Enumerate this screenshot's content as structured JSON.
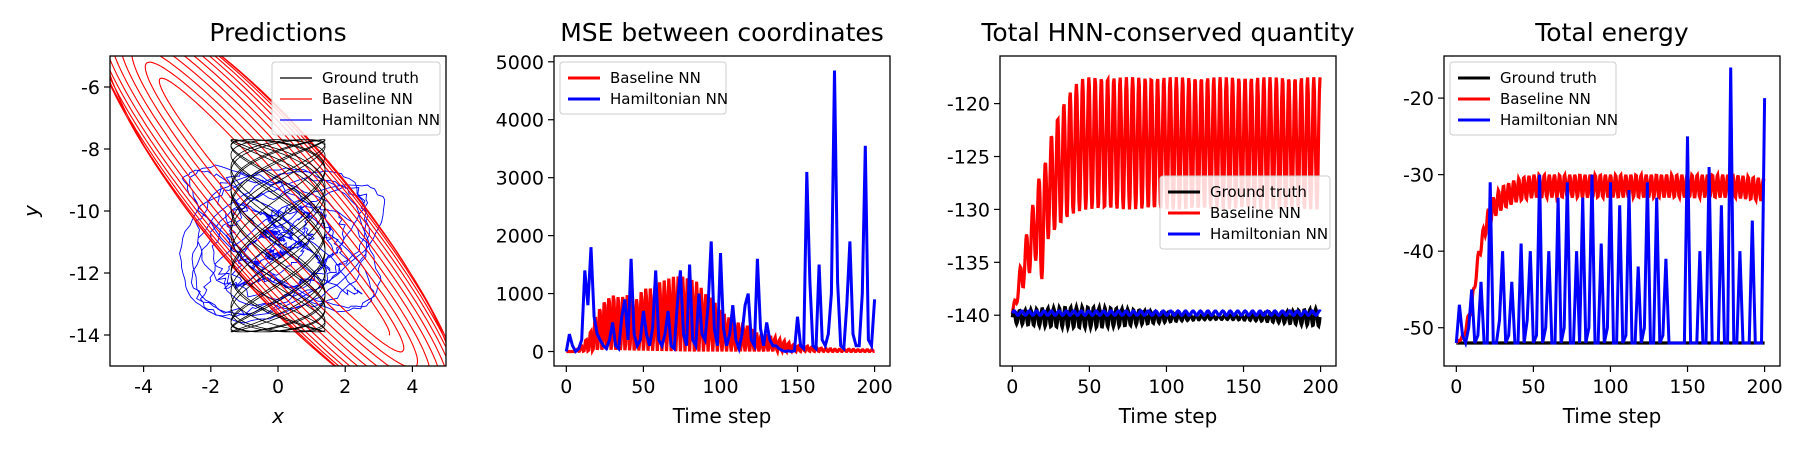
{
  "chart_data": [
    {
      "type": "line",
      "title": "Predictions",
      "xlabel": "x",
      "ylabel": "y",
      "xlim": [
        -5,
        5
      ],
      "ylim": [
        -15,
        -5
      ],
      "xticks": [
        -4,
        -2,
        0,
        2,
        4
      ],
      "yticks": [
        -6,
        -8,
        -10,
        -12,
        -14
      ],
      "legend": "top-right",
      "series": [
        {
          "name": "Ground truth",
          "color": "#000000",
          "shape": "lissajous",
          "x_range": [
            -1.4,
            1.4
          ],
          "y_range": [
            -13.9,
            -7.7
          ]
        },
        {
          "name": "Baseline NN",
          "color": "#ff0000",
          "shape": "drifting elongated ellipses",
          "center": [
            0,
            -10
          ],
          "tilt_deg": -38,
          "x_extent": [
            -4.5,
            4.5
          ],
          "y_extent": [
            -15,
            -5
          ]
        },
        {
          "name": "Hamiltonian NN",
          "color": "#0000ff",
          "shape": "chaotic loops",
          "center": [
            0,
            -11
          ],
          "x_extent": [
            -4,
            4
          ],
          "y_extent": [
            -14.3,
            -7.8
          ]
        }
      ]
    },
    {
      "type": "line",
      "title": "MSE between coordinates",
      "xlabel": "Time step",
      "ylabel": "",
      "xlim": [
        -8,
        210
      ],
      "ylim": [
        -250,
        5100
      ],
      "xticks": [
        0,
        50,
        100,
        150,
        200
      ],
      "yticks": [
        0,
        1000,
        2000,
        3000,
        4000,
        5000
      ],
      "legend": "top-left",
      "series": [
        {
          "name": "Baseline NN",
          "color": "#ff0000",
          "x": [
            0,
            5,
            10,
            15,
            20,
            25,
            30,
            35,
            40,
            45,
            50,
            55,
            60,
            65,
            70,
            75,
            80,
            85,
            90,
            95,
            100,
            105,
            110,
            115,
            120,
            125,
            130,
            135,
            140,
            145,
            150,
            155,
            160,
            165,
            170,
            175,
            180,
            185,
            190,
            195,
            200
          ],
          "values": [
            0,
            0,
            100,
            300,
            700,
            900,
            1000,
            950,
            1000,
            900,
            1100,
            1100,
            1200,
            1250,
            1300,
            1300,
            1250,
            1200,
            1000,
            900,
            700,
            600,
            500,
            500,
            400,
            300,
            300,
            250,
            200,
            150,
            100,
            100,
            80,
            60,
            50,
            40,
            40,
            40,
            30,
            30,
            30
          ]
        },
        {
          "name": "Hamiltonian NN",
          "x": [
            0,
            2,
            4,
            6,
            8,
            10,
            12,
            14,
            16,
            18,
            20,
            22,
            24,
            26,
            28,
            30,
            32,
            34,
            36,
            38,
            40,
            42,
            44,
            46,
            48,
            50,
            52,
            54,
            56,
            58,
            60,
            62,
            64,
            66,
            68,
            70,
            72,
            74,
            76,
            78,
            80,
            82,
            84,
            86,
            88,
            90,
            92,
            94,
            96,
            98,
            100,
            102,
            104,
            106,
            108,
            110,
            112,
            114,
            116,
            118,
            120,
            122,
            124,
            126,
            128,
            130,
            132,
            134,
            136,
            138,
            140,
            142,
            144,
            146,
            148,
            150,
            152,
            154,
            156,
            158,
            160,
            162,
            164,
            166,
            168,
            170,
            172,
            174,
            176,
            178,
            180,
            182,
            184,
            186,
            188,
            190,
            192,
            194,
            196,
            198,
            200
          ],
          "values": [
            0,
            300,
            100,
            0,
            50,
            200,
            1400,
            800,
            1800,
            600,
            300,
            200,
            100,
            50,
            200,
            500,
            100,
            50,
            600,
            900,
            200,
            1600,
            300,
            100,
            200,
            700,
            300,
            100,
            400,
            1400,
            200,
            100,
            300,
            700,
            100,
            50,
            800,
            1400,
            300,
            100,
            1500,
            200,
            100,
            1000,
            300,
            200,
            800,
            1900,
            400,
            100,
            1700,
            400,
            100,
            300,
            800,
            200,
            50,
            300,
            800,
            1000,
            200,
            100,
            1600,
            400,
            100,
            500,
            200,
            100,
            100,
            50,
            20,
            0,
            10,
            0,
            10,
            600,
            100,
            50,
            3100,
            1200,
            100,
            50,
            1500,
            200,
            100,
            300,
            1000,
            4850,
            1200,
            100,
            50,
            800,
            1900,
            300,
            100,
            100,
            1000,
            3550,
            200,
            100,
            900
          ]
        }
      ]
    },
    {
      "type": "line",
      "title": "Total HNN-conserved quantity",
      "xlabel": "Time step",
      "ylabel": "",
      "xlim": [
        -8,
        210
      ],
      "ylim": [
        -144.8,
        -115.5
      ],
      "xticks": [
        0,
        50,
        100,
        150,
        200
      ],
      "yticks": [
        -120,
        -125,
        -130,
        -135,
        -140
      ],
      "legend": "center-right",
      "series": [
        {
          "name": "Ground truth",
          "color": "#000000",
          "mean": -140.2,
          "band": [
            -141.3,
            -139.2
          ]
        },
        {
          "name": "Baseline NN",
          "color": "#ff0000",
          "band_start": [
            -140,
            -139.8
          ],
          "band_end": [
            -130,
            -117.5
          ],
          "band_end_step": 50
        },
        {
          "name": "Hamiltonian NN",
          "color": "#0000ff",
          "mean": -139.8,
          "band": [
            -140,
            -139.6
          ]
        }
      ]
    },
    {
      "type": "line",
      "title": "Total energy",
      "xlabel": "Time step",
      "ylabel": "",
      "xlim": [
        -8,
        210
      ],
      "ylim": [
        -55,
        -14.5
      ],
      "xticks": [
        0,
        50,
        100,
        150,
        200
      ],
      "yticks": [
        -20,
        -30,
        -40,
        -50
      ],
      "legend": "top-left",
      "series": [
        {
          "name": "Ground truth",
          "color": "#000000",
          "values_const": -52
        },
        {
          "name": "Baseline NN",
          "color": "#ff0000",
          "x": [
            0,
            5,
            10,
            15,
            20,
            25,
            30,
            35,
            40,
            50,
            60,
            80,
            100,
            120,
            140,
            160,
            180,
            200
          ],
          "values": [
            -52,
            -51,
            -47,
            -40,
            -36,
            -34,
            -33,
            -32.5,
            -32,
            -31.5,
            -31.5,
            -31.5,
            -31.5,
            -31.5,
            -31.5,
            -31.5,
            -31.5,
            -32
          ]
        },
        {
          "name": "Hamiltonian NN",
          "color": "#0000ff",
          "x": [
            0,
            2,
            4,
            6,
            8,
            10,
            12,
            14,
            16,
            18,
            20,
            22,
            24,
            26,
            28,
            30,
            32,
            34,
            36,
            38,
            40,
            42,
            44,
            46,
            48,
            50,
            52,
            54,
            56,
            58,
            60,
            62,
            64,
            66,
            68,
            70,
            72,
            74,
            76,
            78,
            80,
            82,
            84,
            86,
            88,
            90,
            92,
            94,
            96,
            98,
            100,
            102,
            104,
            106,
            108,
            110,
            112,
            114,
            116,
            118,
            120,
            122,
            124,
            126,
            128,
            130,
            132,
            134,
            136,
            138,
            140,
            142,
            144,
            146,
            148,
            150,
            152,
            154,
            156,
            158,
            160,
            162,
            164,
            166,
            168,
            170,
            172,
            174,
            176,
            178,
            180,
            182,
            184,
            186,
            188,
            190,
            192,
            194,
            196,
            198,
            200
          ],
          "values": [
            -52,
            -47,
            -51,
            -52,
            -50,
            -45,
            -52,
            -51,
            -44,
            -52,
            -52,
            -31,
            -52,
            -52,
            -49,
            -40,
            -52,
            -51,
            -44,
            -52,
            -52,
            -39,
            -52,
            -49,
            -40,
            -52,
            -51,
            -30,
            -52,
            -50,
            -40,
            -52,
            -52,
            -33,
            -52,
            -50,
            -31,
            -52,
            -52,
            -40,
            -52,
            -33,
            -52,
            -50,
            -30,
            -52,
            -52,
            -39,
            -52,
            -50,
            -31,
            -52,
            -52,
            -34,
            -52,
            -51,
            -32,
            -52,
            -52,
            -42,
            -52,
            -50,
            -31,
            -52,
            -52,
            -33,
            -52,
            -51,
            -41,
            -52,
            -52,
            -52,
            -52,
            -52,
            -52,
            -25,
            -52,
            -52,
            -52,
            -40,
            -52,
            -52,
            -29,
            -52,
            -52,
            -52,
            -34,
            -52,
            -52,
            -16,
            -52,
            -52,
            -40,
            -52,
            -52,
            -52,
            -36,
            -52,
            -52,
            -52,
            -20
          ]
        }
      ]
    }
  ]
}
